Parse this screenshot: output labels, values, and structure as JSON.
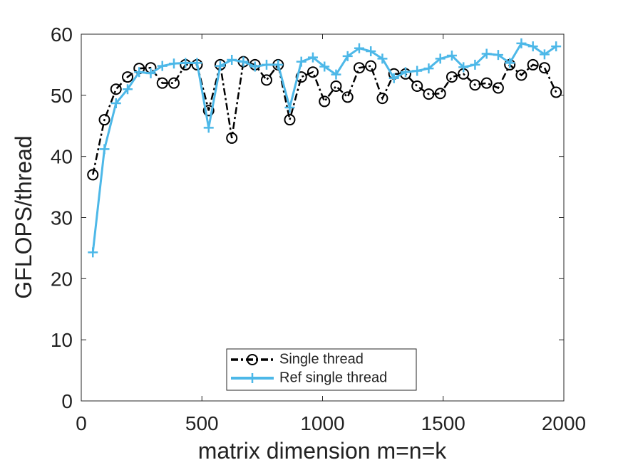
{
  "chart_data": {
    "type": "line",
    "xlabel": "matrix dimension m=n=k",
    "ylabel": "GFLOPS/thread",
    "x": [
      48,
      96,
      144,
      192,
      240,
      288,
      336,
      384,
      432,
      480,
      528,
      576,
      624,
      672,
      720,
      768,
      816,
      864,
      912,
      960,
      1008,
      1056,
      1104,
      1152,
      1200,
      1248,
      1296,
      1344,
      1392,
      1440,
      1488,
      1536,
      1584,
      1632,
      1680,
      1728,
      1776,
      1824,
      1872,
      1920,
      1968
    ],
    "series": [
      {
        "name": "Single thread",
        "color": "#000000",
        "values": [
          37.0,
          46.0,
          51.0,
          53.0,
          54.4,
          54.5,
          52.0,
          52.0,
          55.0,
          55.0,
          47.5,
          55.0,
          43.0,
          55.5,
          55.0,
          52.5,
          55.0,
          46.0,
          53.0,
          53.8,
          49.0,
          51.5,
          49.7,
          54.5,
          54.8,
          49.5,
          53.5,
          53.5,
          51.5,
          50.2,
          50.3,
          53.0,
          53.5,
          51.7,
          52.0,
          51.2,
          55.0,
          53.3,
          55.0,
          54.5,
          50.5
        ]
      },
      {
        "name": "Ref single thread",
        "color": "#4db8e8",
        "values": [
          24.3,
          41.2,
          48.7,
          51.0,
          53.8,
          53.6,
          54.8,
          55.2,
          55.3,
          55.3,
          44.7,
          54.8,
          55.8,
          55.5,
          54.7,
          55.0,
          55.0,
          48.0,
          55.5,
          56.2,
          54.7,
          53.4,
          56.4,
          57.7,
          57.2,
          56.0,
          52.8,
          53.8,
          54.0,
          54.4,
          56.0,
          56.5,
          54.6,
          55.0,
          56.8,
          56.6,
          55.3,
          58.5,
          58.0,
          56.7,
          58.0
        ]
      }
    ],
    "xlim": [
      0,
      2000
    ],
    "xticks": [
      0,
      500,
      1000,
      1500,
      2000
    ],
    "ylim": [
      0,
      60
    ],
    "yticks": [
      0,
      10,
      20,
      30,
      40,
      50,
      60
    ],
    "legend": "lower center"
  }
}
